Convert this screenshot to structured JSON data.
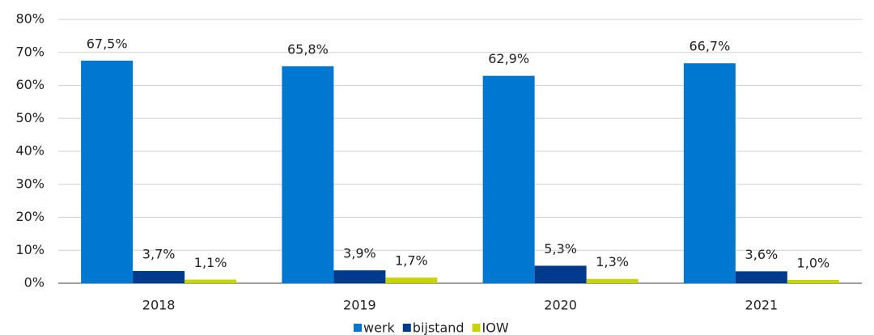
{
  "chart_data": {
    "type": "bar",
    "categories": [
      "2018",
      "2019",
      "2020",
      "2021"
    ],
    "series": [
      {
        "name": "werk",
        "color": "#0078d2",
        "values": [
          67.5,
          65.8,
          62.9,
          66.7
        ],
        "value_labels": [
          "67,5%",
          "65,8%",
          "62,9%",
          "66,7%"
        ]
      },
      {
        "name": "bijstand",
        "color": "#003a8c",
        "values": [
          3.7,
          3.9,
          5.3,
          3.6
        ],
        "value_labels": [
          "3,7%",
          "3,9%",
          "5,3%",
          "3,6%"
        ]
      },
      {
        "name": "IOW",
        "color": "#c8d400",
        "values": [
          1.1,
          1.7,
          1.3,
          1.0
        ],
        "value_labels": [
          "1,1%",
          "1,7%",
          "1,3%",
          "1,0%"
        ]
      }
    ],
    "ylim": [
      0,
      80
    ],
    "yticks": [
      {
        "value": 0,
        "label": "0%"
      },
      {
        "value": 10,
        "label": "10%"
      },
      {
        "value": 20,
        "label": "20%"
      },
      {
        "value": 30,
        "label": "30%"
      },
      {
        "value": 40,
        "label": "40%"
      },
      {
        "value": 50,
        "label": "50%"
      },
      {
        "value": 60,
        "label": "60%"
      },
      {
        "value": 70,
        "label": "70%"
      },
      {
        "value": 80,
        "label": "80%"
      }
    ],
    "grid": true,
    "legend": "bottom"
  }
}
